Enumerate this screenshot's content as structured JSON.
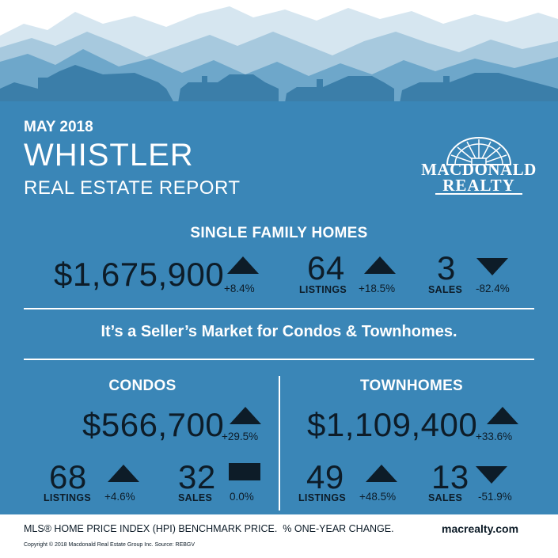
{
  "colors": {
    "background": "#3a86b7",
    "dark_text": "#0d1c28",
    "white": "#ffffff"
  },
  "header": {
    "date": "MAY 2018",
    "city": "WHISTLER",
    "subtitle": "REAL ESTATE REPORT",
    "logo": {
      "line1": "MACDONALD",
      "line2": "REALTY"
    }
  },
  "single_family": {
    "title": "SINGLE FAMILY HOMES",
    "price": "$1,675,900",
    "price_change": "+8.4%",
    "price_trend": "up",
    "listings": "64",
    "listings_label": "LISTINGS",
    "listings_change": "+18.5%",
    "listings_trend": "up",
    "sales": "3",
    "sales_label": "SALES",
    "sales_change": "-82.4%",
    "sales_trend": "down"
  },
  "market_message": "It’s a Seller’s Market for Condos & Townhomes.",
  "condos": {
    "title": "CONDOS",
    "price": "$566,700",
    "price_change": "+29.5%",
    "price_trend": "up",
    "listings": "68",
    "listings_label": "LISTINGS",
    "listings_change": "+4.6%",
    "listings_trend": "up",
    "sales": "32",
    "sales_label": "SALES",
    "sales_change": "0.0%",
    "sales_trend": "flat"
  },
  "townhomes": {
    "title": "TOWNHOMES",
    "price": "$1,109,400",
    "price_change": "+33.6%",
    "price_trend": "up",
    "listings": "49",
    "listings_label": "LISTINGS",
    "listings_change": "+48.5%",
    "listings_trend": "up",
    "sales": "13",
    "sales_label": "SALES",
    "sales_change": "-51.9%",
    "sales_trend": "down"
  },
  "footer": {
    "note": "MLS® HOME PRICE INDEX (HPI) BENCHMARK PRICE.  % ONE-YEAR CHANGE.",
    "website": "macrealty.com",
    "copyright": "Copyright © 2018 Macdonald Real Estate Group Inc. Source: REBGV"
  }
}
